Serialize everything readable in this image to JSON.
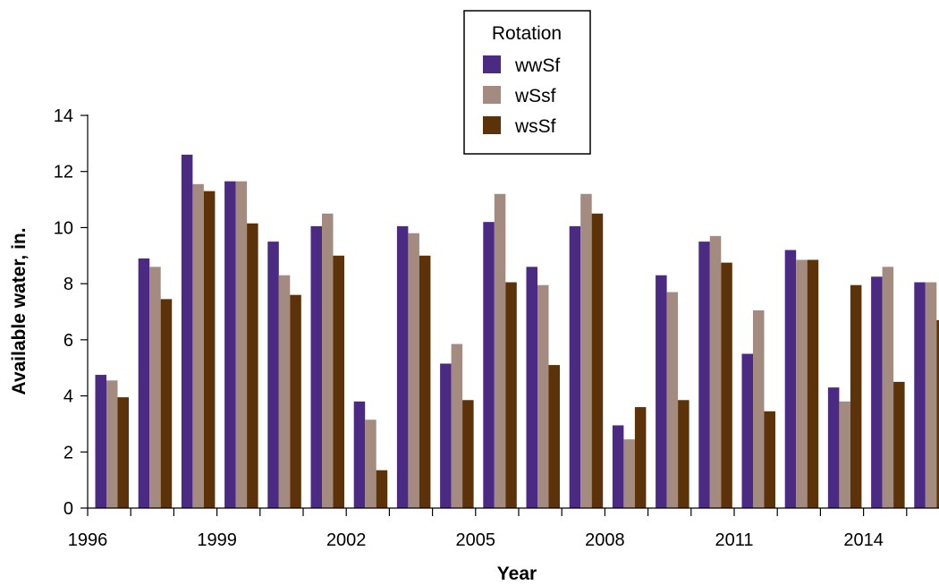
{
  "chart_data": {
    "type": "bar",
    "xlabel": "Year",
    "ylabel": "Available water, in.",
    "ylim": [
      0,
      14
    ],
    "yticks": [
      0,
      2,
      4,
      6,
      8,
      10,
      12,
      14
    ],
    "x_tick_labels": [
      "1996",
      "1999",
      "2002",
      "2005",
      "2008",
      "2011",
      "2014"
    ],
    "categories": [
      "1996",
      "1997",
      "1998",
      "1999",
      "2000",
      "2001",
      "2002",
      "2003",
      "2004",
      "2005",
      "2006",
      "2007",
      "2008",
      "2009",
      "2010",
      "2011",
      "2012",
      "2013",
      "2014",
      "2015"
    ],
    "legend": {
      "title": "Rotation",
      "placement": "top-center"
    },
    "grid": false,
    "series": [
      {
        "name": "wwSf",
        "color": "#4b2a84",
        "values": [
          4.75,
          8.9,
          12.6,
          11.65,
          9.5,
          10.05,
          3.8,
          10.05,
          5.15,
          10.2,
          8.6,
          10.05,
          2.95,
          8.3,
          9.5,
          5.5,
          9.2,
          4.3,
          8.25,
          8.05
        ]
      },
      {
        "name": "wSsf",
        "color": "#a38b80",
        "values": [
          4.55,
          8.6,
          11.55,
          11.65,
          8.3,
          10.5,
          3.15,
          9.8,
          5.85,
          11.2,
          7.95,
          11.2,
          2.45,
          7.7,
          9.7,
          7.05,
          8.85,
          3.8,
          8.6,
          8.05
        ]
      },
      {
        "name": "wsSf",
        "color": "#5c3208",
        "values": [
          3.95,
          7.45,
          11.3,
          10.15,
          7.6,
          9.0,
          1.35,
          9.0,
          3.85,
          8.05,
          5.1,
          10.5,
          3.6,
          3.85,
          8.75,
          3.45,
          8.85,
          7.95,
          4.5,
          6.7
        ]
      }
    ]
  }
}
